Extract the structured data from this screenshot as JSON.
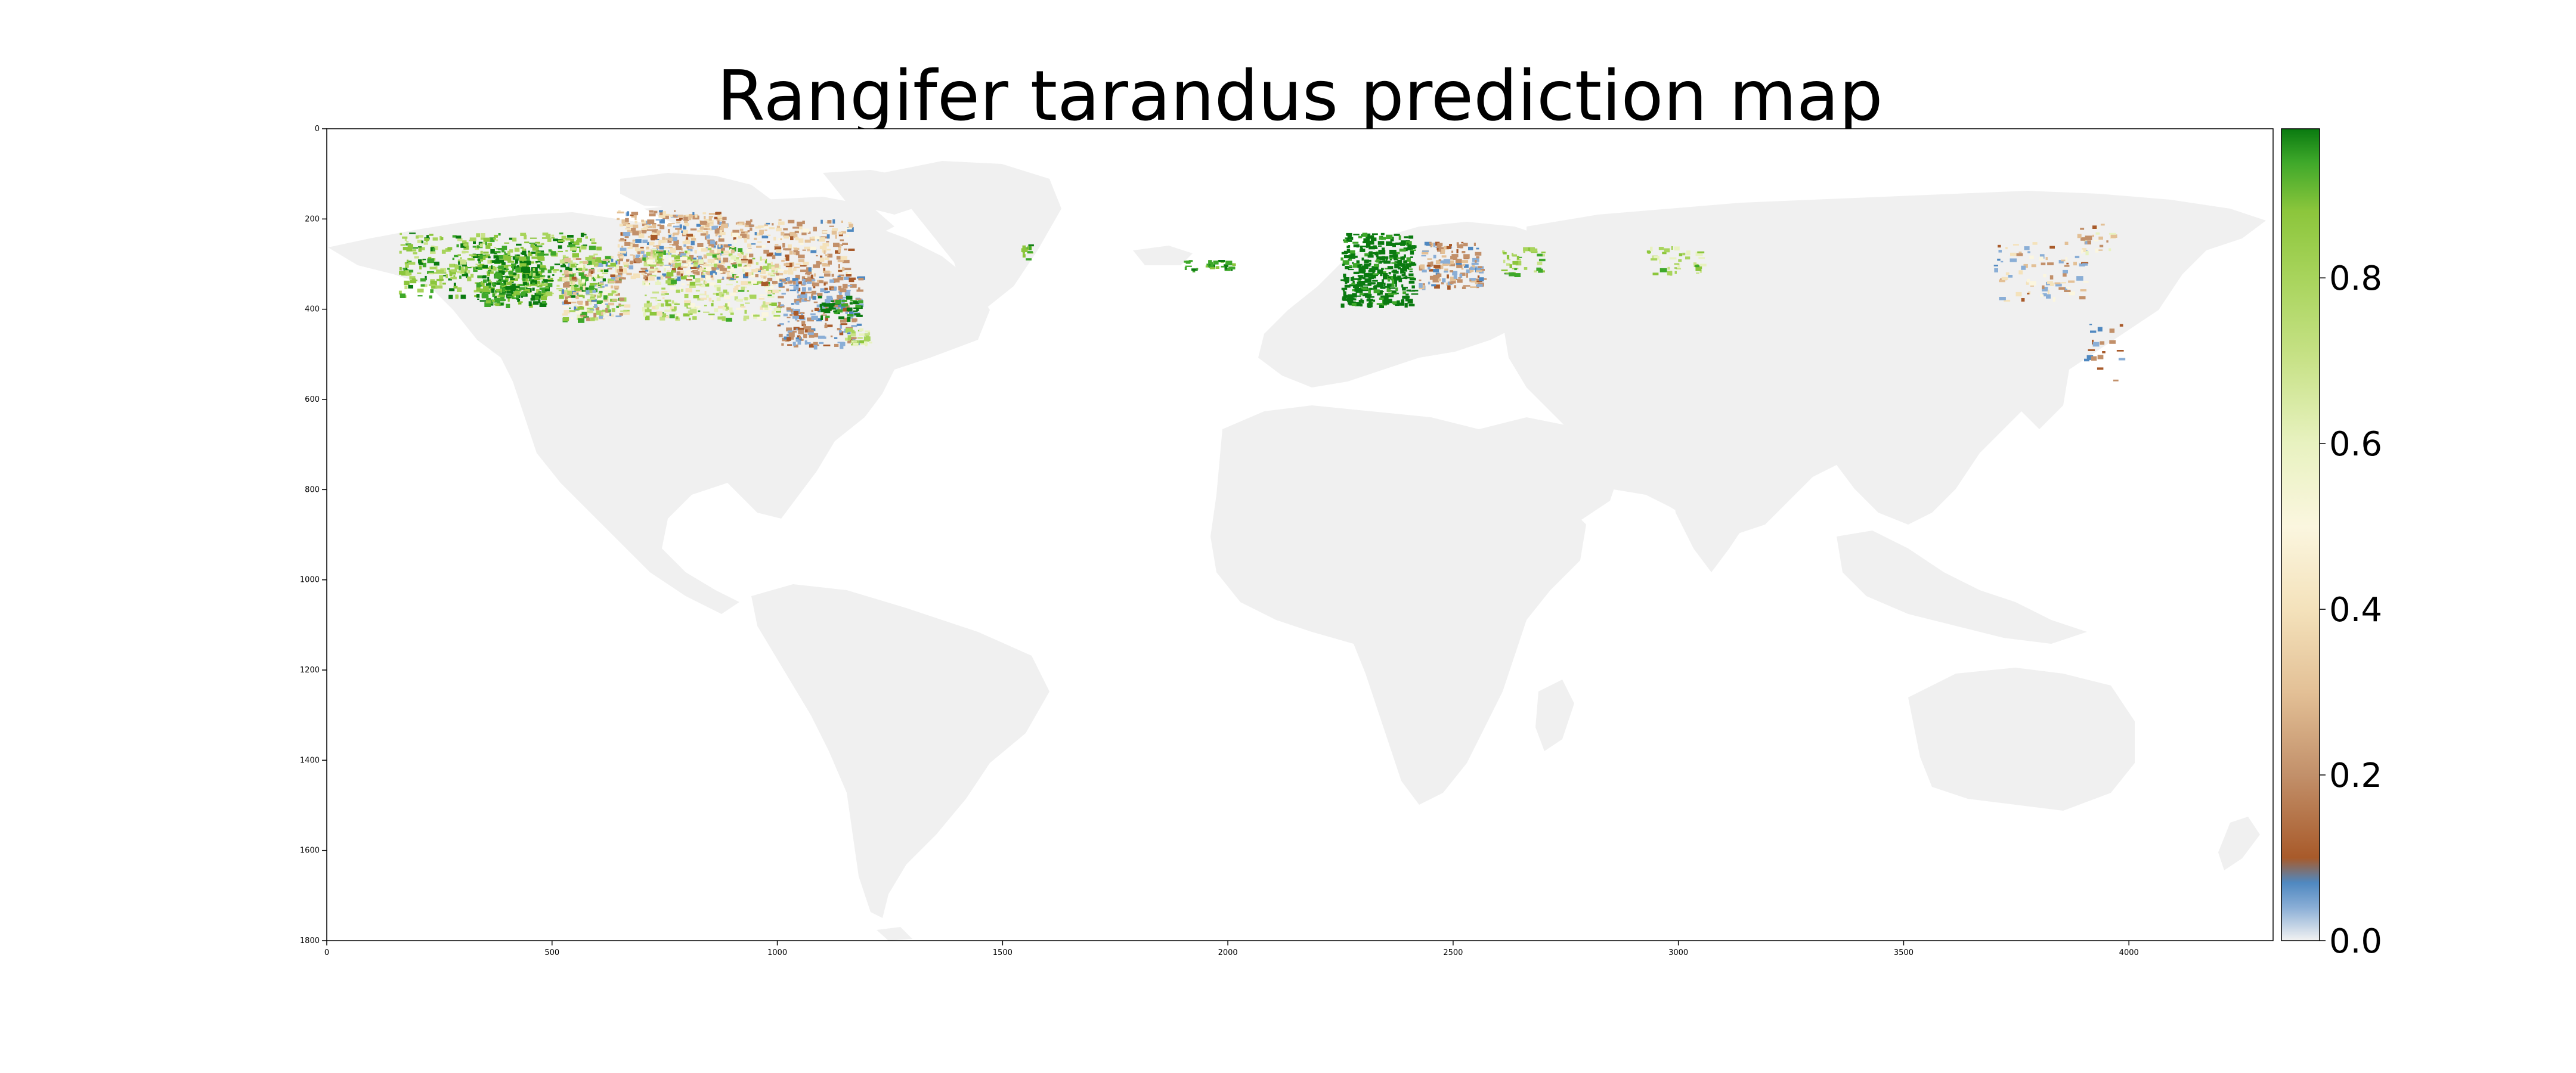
{
  "title": "Rangifer tarandus prediction map",
  "chart_data": {
    "type": "heatmap",
    "title": "Rangifer tarandus prediction map",
    "xlabel": "",
    "ylabel": "",
    "xlim": [
      0,
      4320
    ],
    "ylim": [
      1800,
      0
    ],
    "x_ticks": [
      "0",
      "500",
      "1000",
      "1500",
      "2000",
      "2500",
      "3000",
      "3500",
      "4000"
    ],
    "x_tick_values": [
      0,
      500,
      1000,
      1500,
      2000,
      2500,
      3000,
      3500,
      4000
    ],
    "y_ticks": [
      "0",
      "200",
      "400",
      "600",
      "800",
      "1000",
      "1200",
      "1400",
      "1600",
      "1800"
    ],
    "y_tick_values": [
      0,
      200,
      400,
      600,
      800,
      1000,
      1200,
      1400,
      1600,
      1800
    ],
    "colorbar": {
      "range": [
        0.0,
        0.98
      ],
      "ticks": [
        "0.0",
        "0.2",
        "0.4",
        "0.6",
        "0.8"
      ],
      "tick_values": [
        0.0,
        0.2,
        0.4,
        0.6,
        0.8
      ],
      "stops": [
        {
          "value": 0.0,
          "color": "#f2f2f2"
        },
        {
          "value": 0.04,
          "color": "#8aaed6"
        },
        {
          "value": 0.07,
          "color": "#4f88c0"
        },
        {
          "value": 0.1,
          "color": "#a85a2a"
        },
        {
          "value": 0.2,
          "color": "#c2906a"
        },
        {
          "value": 0.3,
          "color": "#e3c096"
        },
        {
          "value": 0.4,
          "color": "#f4e2bb"
        },
        {
          "value": 0.5,
          "color": "#fbf6df"
        },
        {
          "value": 0.6,
          "color": "#e8f2c0"
        },
        {
          "value": 0.7,
          "color": "#c8e288"
        },
        {
          "value": 0.8,
          "color": "#a8d45c"
        },
        {
          "value": 0.88,
          "color": "#8cc63c"
        },
        {
          "value": 0.94,
          "color": "#3ea82a"
        },
        {
          "value": 0.98,
          "color": "#0a7a10"
        }
      ]
    },
    "land_color": "#f0f0f0",
    "ocean_color": "#ffffff"
  }
}
